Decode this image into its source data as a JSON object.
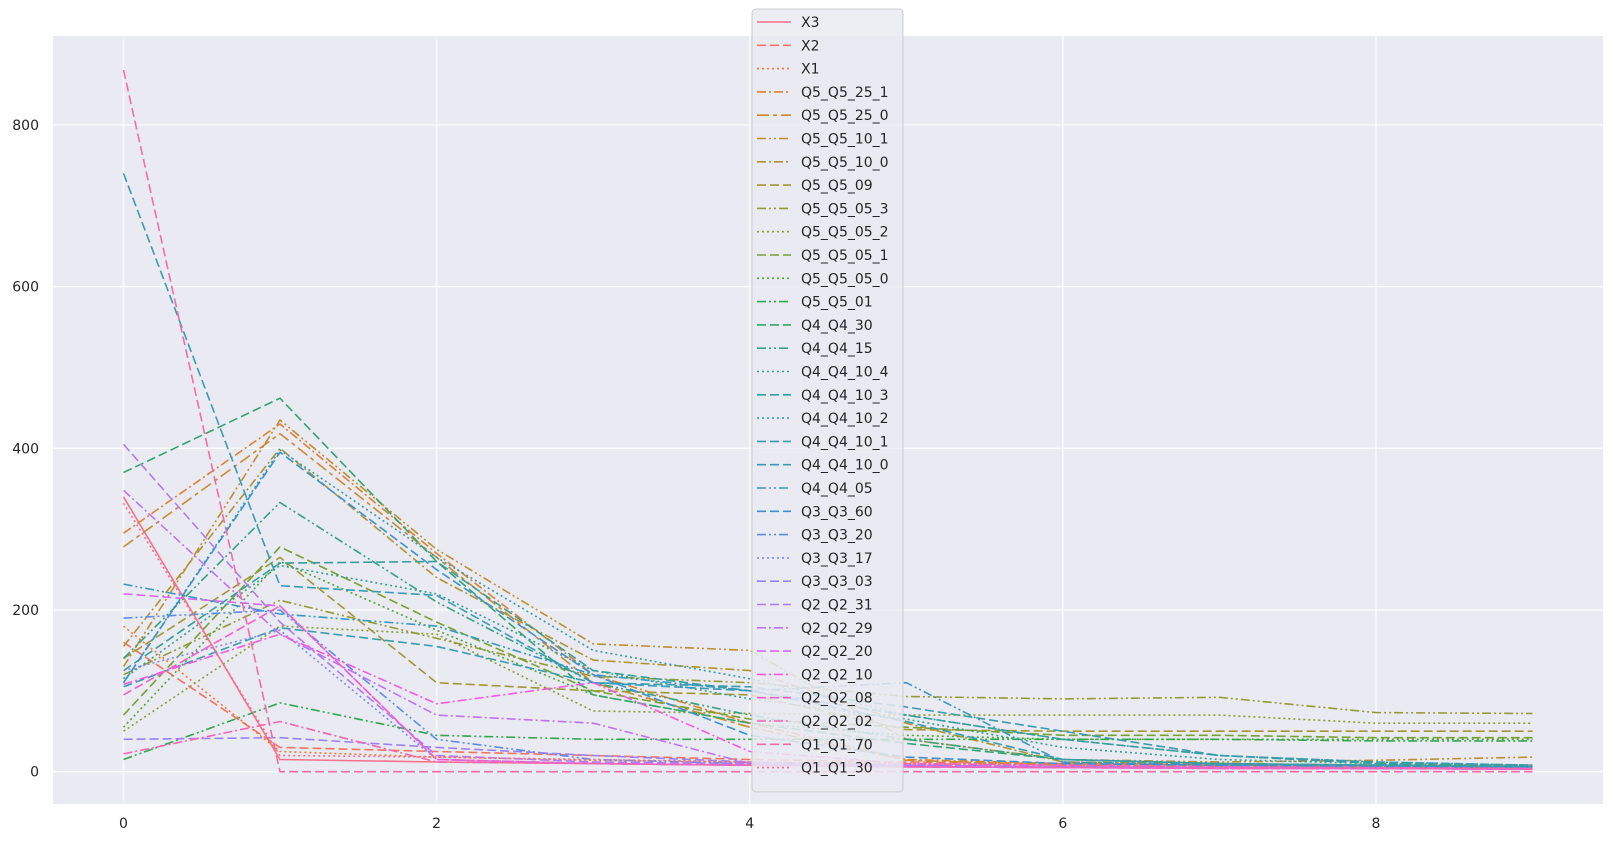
{
  "chart_data": {
    "type": "line",
    "title": "",
    "xlabel": "",
    "ylabel": "",
    "xlim": [
      -0.45,
      9.45
    ],
    "ylim": [
      -40,
      910
    ],
    "x_ticks": [
      "0",
      "2",
      "4",
      "6",
      "8"
    ],
    "y_ticks": [
      "0",
      "200",
      "400",
      "600",
      "800"
    ],
    "grid": true,
    "background": "#eaeaf2",
    "legend_position": "top-center",
    "x": [
      0,
      1,
      2,
      3,
      4,
      5,
      6,
      7,
      8,
      9
    ],
    "series": [
      {
        "name": "X3",
        "color": "#f77189",
        "dash": "solid",
        "values": [
          340,
          15,
          12,
          10,
          8,
          6,
          5,
          5,
          4,
          3
        ]
      },
      {
        "name": "X2",
        "color": "#f6745e",
        "dash": "dashed",
        "values": [
          160,
          30,
          25,
          20,
          15,
          12,
          10,
          9,
          8,
          8
        ]
      },
      {
        "name": "X1",
        "color": "#f37735",
        "dash": "dotted",
        "values": [
          180,
          25,
          18,
          14,
          12,
          10,
          9,
          8,
          7,
          6
        ]
      },
      {
        "name": "Q5_Q5_25_1",
        "color": "#de8131",
        "dash": "dashdot",
        "values": [
          295,
          430,
          270,
          120,
          60,
          15,
          10,
          8,
          6,
          5
        ]
      },
      {
        "name": "Q5_Q5_25_0",
        "color": "#cc8a32",
        "dash": "dashdot2",
        "values": [
          278,
          418,
          265,
          110,
          55,
          14,
          8,
          6,
          5,
          4
        ]
      },
      {
        "name": "Q5_Q5_10_1",
        "color": "#bd8f32",
        "dash": "dashdotdot",
        "values": [
          130,
          435,
          275,
          158,
          150,
          40,
          15,
          12,
          14,
          18
        ]
      },
      {
        "name": "Q5_Q5_10_0",
        "color": "#ae9432",
        "dash": "dashdot",
        "values": [
          155,
          400,
          240,
          138,
          125,
          60,
          12,
          10,
          8,
          6
        ]
      },
      {
        "name": "Q5_Q5_09",
        "color": "#a29732",
        "dash": "dashed",
        "values": [
          140,
          265,
          110,
          100,
          95,
          52,
          50,
          50,
          50,
          50
        ]
      },
      {
        "name": "Q5_Q5_05_3",
        "color": "#969b31",
        "dash": "dashdotdot",
        "values": [
          120,
          212,
          165,
          118,
          110,
          93,
          90,
          92,
          73,
          72
        ]
      },
      {
        "name": "Q5_Q5_05_2",
        "color": "#8a9e31",
        "dash": "dotted",
        "values": [
          50,
          180,
          170,
          75,
          72,
          70,
          70,
          70,
          60,
          60
        ]
      },
      {
        "name": "Q5_Q5_05_1",
        "color": "#77a231",
        "dash": "dashed",
        "values": [
          70,
          278,
          185,
          100,
          65,
          55,
          45,
          45,
          42,
          42
        ]
      },
      {
        "name": "Q5_Q5_05_0",
        "color": "#4fa831",
        "dash": "dotted",
        "values": [
          55,
          260,
          175,
          95,
          60,
          45,
          40,
          40,
          40,
          40
        ]
      },
      {
        "name": "Q5_Q5_01",
        "color": "#32a74e",
        "dash": "dashdotdot",
        "values": [
          15,
          85,
          45,
          40,
          40,
          40,
          40,
          40,
          38,
          38
        ]
      },
      {
        "name": "Q4_Q4_30",
        "color": "#33a56e",
        "dash": "dashed",
        "values": [
          370,
          462,
          260,
          95,
          60,
          35,
          15,
          10,
          8,
          6
        ]
      },
      {
        "name": "Q4_Q4_15",
        "color": "#34a381",
        "dash": "dashdotdot",
        "values": [
          140,
          333,
          210,
          110,
          70,
          40,
          15,
          10,
          8,
          6
        ]
      },
      {
        "name": "Q4_Q4_10_4",
        "color": "#35a18f",
        "dash": "dotted",
        "values": [
          115,
          255,
          220,
          125,
          90,
          65,
          30,
          15,
          10,
          8
        ]
      },
      {
        "name": "Q4_Q4_10_3",
        "color": "#36a09b",
        "dash": "dashed",
        "values": [
          125,
          258,
          260,
          125,
          100,
          70,
          40,
          20,
          10,
          8
        ]
      },
      {
        "name": "Q4_Q4_10_2",
        "color": "#369ea5",
        "dash": "dotted",
        "values": [
          110,
          398,
          265,
          150,
          115,
          70,
          40,
          20,
          12,
          8
        ]
      },
      {
        "name": "Q4_Q4_10_1",
        "color": "#379daf",
        "dash": "dashed",
        "values": [
          105,
          178,
          155,
          110,
          105,
          80,
          50,
          20,
          12,
          8
        ]
      },
      {
        "name": "Q4_Q4_10_0",
        "color": "#389bb9",
        "dash": "dashed",
        "values": [
          740,
          230,
          218,
          110,
          100,
          62,
          15,
          10,
          8,
          6
        ]
      },
      {
        "name": "Q4_Q4_05",
        "color": "#3a98c3",
        "dash": "dashdotdot",
        "values": [
          232,
          195,
          180,
          120,
          100,
          110,
          12,
          8,
          6,
          5
        ]
      },
      {
        "name": "Q3_Q3_60",
        "color": "#3c93d0",
        "dash": "dashed",
        "values": [
          110,
          395,
          250,
          120,
          45,
          18,
          10,
          8,
          6,
          5
        ]
      },
      {
        "name": "Q3_Q3_20",
        "color": "#5b8de7",
        "dash": "dashdotdot",
        "values": [
          190,
          200,
          40,
          15,
          10,
          8,
          6,
          5,
          4,
          4
        ]
      },
      {
        "name": "Q3_Q3_17",
        "color": "#7d88f2",
        "dash": "dotted",
        "values": [
          125,
          175,
          15,
          10,
          8,
          6,
          5,
          4,
          4,
          3
        ]
      },
      {
        "name": "Q3_Q3_03",
        "color": "#9a82f4",
        "dash": "dashed",
        "values": [
          40,
          42,
          30,
          20,
          12,
          8,
          6,
          5,
          4,
          3
        ]
      },
      {
        "name": "Q2_Q2_31",
        "color": "#ae7cf4",
        "dash": "dashed",
        "values": [
          405,
          185,
          20,
          12,
          10,
          8,
          6,
          5,
          4,
          3
        ]
      },
      {
        "name": "Q2_Q2_29",
        "color": "#c071f4",
        "dash": "dashdot",
        "values": [
          348,
          170,
          70,
          60,
          10,
          8,
          6,
          5,
          4,
          3
        ]
      },
      {
        "name": "Q2_Q2_20",
        "color": "#d56af4",
        "dash": "dashed",
        "values": [
          220,
          205,
          15,
          10,
          8,
          6,
          5,
          4,
          4,
          3
        ]
      },
      {
        "name": "Q2_Q2_10",
        "color": "#f45ae4",
        "dash": "dashdot",
        "values": [
          108,
          170,
          84,
          110,
          25,
          10,
          8,
          6,
          5,
          4
        ]
      },
      {
        "name": "Q2_Q2_08",
        "color": "#f55ec6",
        "dash": "dashed",
        "values": [
          95,
          205,
          15,
          10,
          8,
          6,
          5,
          4,
          4,
          3
        ]
      },
      {
        "name": "Q2_Q2_02",
        "color": "#f565b3",
        "dash": "dashdot",
        "values": [
          22,
          62,
          12,
          10,
          8,
          6,
          5,
          4,
          4,
          3
        ]
      },
      {
        "name": "Q1_Q1_70",
        "color": "#f56ca5",
        "dash": "dashed",
        "values": [
          868,
          0,
          0,
          0,
          0,
          0,
          0,
          0,
          0,
          0
        ]
      },
      {
        "name": "Q1_Q1_30",
        "color": "#f66e92",
        "dash": "dotted",
        "values": [
          332,
          20,
          18,
          15,
          12,
          10,
          8,
          6,
          5,
          4
        ]
      }
    ]
  }
}
